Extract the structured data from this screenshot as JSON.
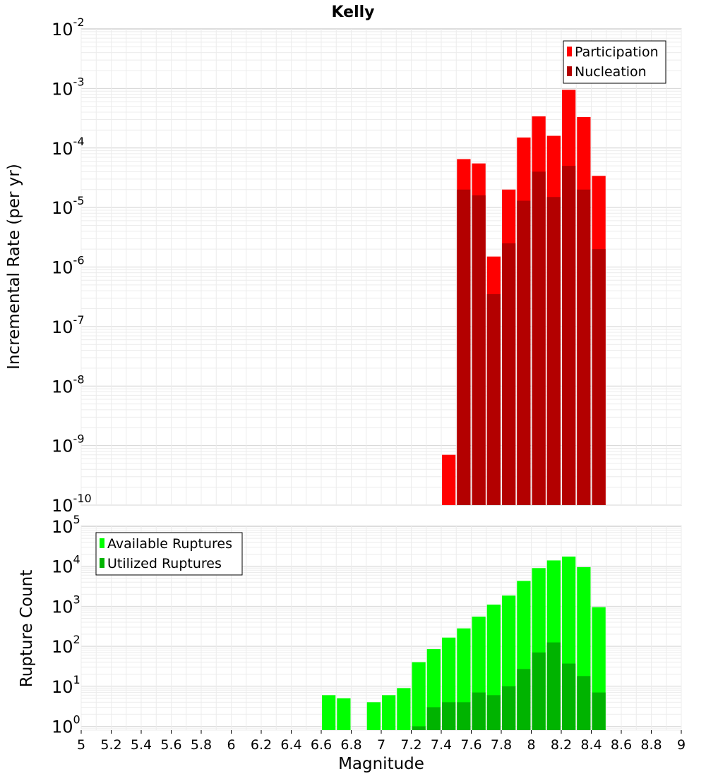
{
  "chart_data": [
    {
      "type": "bar",
      "title": "Kelly",
      "ylabel": "Incremental Rate (per yr)",
      "xlabel": "",
      "yscale": "log",
      "ylim": [
        1e-10,
        0.01
      ],
      "xlim": [
        5,
        9
      ],
      "bin_width": 0.1,
      "grid": true,
      "legend": "top-right",
      "y_ticks": [
        {
          "base": "10",
          "exp": "-10"
        },
        {
          "base": "10",
          "exp": "-9"
        },
        {
          "base": "10",
          "exp": "-8"
        },
        {
          "base": "10",
          "exp": "-7"
        },
        {
          "base": "10",
          "exp": "-6"
        },
        {
          "base": "10",
          "exp": "-5"
        },
        {
          "base": "10",
          "exp": "-4"
        },
        {
          "base": "10",
          "exp": "-3"
        },
        {
          "base": "10",
          "exp": "-2"
        }
      ],
      "series": [
        {
          "name": "Participation",
          "color": "#ff0000",
          "x": [
            7.45,
            7.55,
            7.65,
            7.75,
            7.85,
            7.95,
            8.05,
            8.15,
            8.25,
            8.35,
            8.45
          ],
          "values": [
            7e-10,
            6.5e-05,
            5.5e-05,
            1.5e-06,
            2e-05,
            0.00015,
            0.00034,
            0.00016,
            0.00095,
            0.00033,
            3.4e-05
          ]
        },
        {
          "name": "Nucleation",
          "color": "#b30000",
          "x": [
            7.55,
            7.65,
            7.75,
            7.85,
            7.95,
            8.05,
            8.15,
            8.25,
            8.35,
            8.45
          ],
          "values": [
            2e-05,
            1.6e-05,
            3.5e-07,
            2.5e-06,
            1.3e-05,
            4e-05,
            1.5e-05,
            5e-05,
            2e-05,
            2e-06
          ]
        }
      ]
    },
    {
      "type": "bar",
      "title": "",
      "ylabel": "Rupture Count",
      "xlabel": "Magnitude",
      "yscale": "log",
      "ylim": [
        0.8,
        100000.0
      ],
      "xlim": [
        5,
        9
      ],
      "bin_width": 0.1,
      "grid": true,
      "legend": "top-left",
      "y_ticks": [
        {
          "base": "10",
          "exp": "0"
        },
        {
          "base": "10",
          "exp": "1"
        },
        {
          "base": "10",
          "exp": "2"
        },
        {
          "base": "10",
          "exp": "3"
        },
        {
          "base": "10",
          "exp": "4"
        },
        {
          "base": "10",
          "exp": "5"
        }
      ],
      "x_ticks": [
        "5",
        "5.2",
        "5.4",
        "5.6",
        "5.8",
        "6",
        "6.2",
        "6.4",
        "6.6",
        "6.8",
        "7",
        "7.2",
        "7.4",
        "7.6",
        "7.8",
        "8",
        "8.2",
        "8.4",
        "8.6",
        "8.8",
        "9"
      ],
      "series": [
        {
          "name": "Available Ruptures",
          "color": "#00ff00",
          "x": [
            6.65,
            6.75,
            6.95,
            7.05,
            7.15,
            7.25,
            7.35,
            7.45,
            7.55,
            7.65,
            7.75,
            7.85,
            7.95,
            8.05,
            8.15,
            8.25,
            8.35,
            8.45
          ],
          "values": [
            6,
            5,
            4,
            6,
            9,
            40,
            85,
            165,
            280,
            550,
            1100,
            1850,
            4300,
            9000,
            14000,
            17500,
            9500,
            950
          ]
        },
        {
          "name": "Utilized Ruptures",
          "color": "#00b300",
          "x": [
            7.25,
            7.35,
            7.45,
            7.55,
            7.65,
            7.75,
            7.85,
            7.95,
            8.05,
            8.15,
            8.25,
            8.35,
            8.45
          ],
          "values": [
            1,
            3,
            4,
            4,
            7,
            6,
            10,
            27,
            70,
            125,
            37,
            18,
            7
          ]
        }
      ]
    }
  ]
}
